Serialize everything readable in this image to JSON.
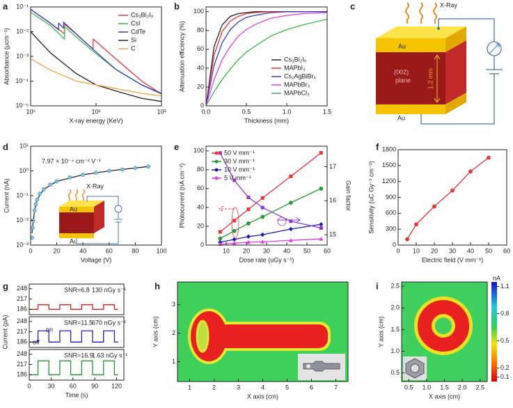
{
  "chart_data": [
    {
      "panel": "a",
      "type": "line",
      "xlabel": "X-ray energy (KeV)",
      "ylabel": "Absorbance (μcm⁻¹)",
      "xscale": "log",
      "yscale": "log",
      "xlim": [
        10,
        1000
      ],
      "ylim": [
        1e-05,
        0.1
      ],
      "xticks": [
        {
          "value": 10,
          "label": "10¹"
        },
        {
          "value": 100,
          "label": "10²"
        },
        {
          "value": 1000,
          "label": "10³"
        }
      ],
      "yticks": [
        {
          "value": 1e-05,
          "label": "10⁻⁵"
        },
        {
          "value": 0.0001,
          "label": "10⁻⁴"
        },
        {
          "value": 0.001,
          "label": "10⁻³"
        },
        {
          "value": 0.01,
          "label": "10⁻²"
        },
        {
          "value": 0.1,
          "label": "10⁻¹"
        }
      ],
      "legend": "upper right",
      "series": [
        {
          "name": "Cs₃Bi₂I₉",
          "color": "#e8333a",
          "x": [
            10,
            20,
            30,
            33,
            33.2,
            40,
            50,
            70,
            90,
            90.6,
            100,
            200,
            500,
            1000
          ],
          "values": [
            0.08,
            0.022,
            0.01,
            0.008,
            0.02,
            0.013,
            0.008,
            0.0035,
            0.002,
            0.005,
            0.004,
            0.0008,
            0.0001,
            3e-05
          ]
        },
        {
          "name": "CsI",
          "color": "#3bb54a",
          "x": [
            10,
            20,
            33,
            33.2,
            50,
            100,
            200,
            500,
            1000
          ],
          "values": [
            0.06,
            0.018,
            0.005,
            0.016,
            0.006,
            0.0013,
            0.0003,
            7e-05,
            3e-05
          ]
        },
        {
          "name": "CdTe",
          "color": "#3a3ab8",
          "x": [
            10,
            20,
            26.7,
            26.8,
            31.8,
            31.9,
            50,
            100,
            200,
            500,
            1000
          ],
          "values": [
            0.08,
            0.022,
            0.012,
            0.022,
            0.014,
            0.024,
            0.008,
            0.0015,
            0.0003,
            7e-05,
            3.2e-05
          ]
        },
        {
          "name": "Si",
          "color": "#222222",
          "x": [
            10,
            20,
            50,
            100,
            200,
            500,
            1000
          ],
          "values": [
            0.01,
            0.0014,
            0.0002,
            7e-05,
            4e-05,
            2e-05,
            1.5e-05
          ]
        },
        {
          "name": "C",
          "color": "#f0a34a",
          "x": [
            10,
            20,
            50,
            100,
            200,
            500,
            1000
          ],
          "values": [
            0.0008,
            0.00028,
            0.0001,
            7e-05,
            5e-05,
            3.2e-05,
            2.5e-05
          ]
        }
      ]
    },
    {
      "panel": "b",
      "type": "line",
      "xlabel": "Thickness (mm)",
      "ylabel": "Attenuation efficiency (%)",
      "xlim": [
        0,
        1.5
      ],
      "ylim": [
        0,
        105
      ],
      "xticks": [
        {
          "value": 0,
          "label": "0.0"
        },
        {
          "value": 0.5,
          "label": "0.5"
        },
        {
          "value": 1,
          "label": "1.0"
        },
        {
          "value": 1.5,
          "label": "1.5"
        }
      ],
      "yticks": [
        0,
        20,
        40,
        60,
        80,
        100
      ],
      "legend": "lower right",
      "x": [
        0,
        0.1,
        0.2,
        0.3,
        0.4,
        0.5,
        0.6,
        0.8,
        1.0,
        1.2,
        1.5
      ],
      "series": [
        {
          "name": "Cs₃Bi₂I₉",
          "color": "#222222",
          "values": [
            0,
            63,
            86,
            95,
            98,
            99,
            100,
            100,
            100,
            100,
            100
          ]
        },
        {
          "name": "MAPbI₃",
          "color": "#e8333a",
          "values": [
            0,
            54,
            79,
            90,
            95,
            98,
            99,
            100,
            100,
            100,
            100
          ]
        },
        {
          "name": "Cs₂AgBiBr₆",
          "color": "#3a3ab8",
          "values": [
            0,
            43,
            67,
            81,
            89,
            94,
            96,
            99,
            100,
            100,
            100
          ]
        },
        {
          "name": "MAPbBr₃",
          "color": "#e040e0",
          "values": [
            0,
            28,
            49,
            63,
            74,
            81,
            86,
            93,
            96,
            98,
            99
          ]
        },
        {
          "name": "MAPbCl₃",
          "color": "#3bb54a",
          "values": [
            0,
            15,
            28,
            39,
            49,
            57,
            63,
            74,
            81,
            86,
            92
          ]
        }
      ]
    },
    {
      "panel": "d",
      "type": "line",
      "xlabel": "Voltage (V)",
      "ylabel": "Current (nA)",
      "yscale": "log",
      "xlim": [
        0,
        100
      ],
      "ylim": [
        0.001,
        10
      ],
      "xticks": [
        0,
        20,
        40,
        60,
        80,
        100
      ],
      "yticks": [
        {
          "value": 0.001,
          "label": "10⁻³"
        },
        {
          "value": 0.01,
          "label": "10⁻²"
        },
        {
          "value": 0.1,
          "label": "10⁻¹"
        },
        {
          "value": 1,
          "label": "10⁰"
        },
        {
          "value": 10,
          "label": "10¹"
        }
      ],
      "annotations": [
        "7.97 × 10⁻⁴ cm⁻² V⁻¹"
      ],
      "series": [
        {
          "color": "#7cc0dc",
          "marker": "circle",
          "linestyle": "none",
          "x": [
            1,
            1.5,
            2,
            3,
            4,
            5,
            7,
            10,
            15,
            20,
            30,
            40,
            50,
            60,
            70,
            80,
            90
          ],
          "values": [
            0.002,
            0.005,
            0.01,
            0.025,
            0.045,
            0.07,
            0.12,
            0.18,
            0.28,
            0.38,
            0.55,
            0.7,
            0.85,
            1.0,
            1.15,
            1.3,
            1.5
          ]
        },
        {
          "color": "#222222",
          "x": [
            1,
            3,
            5,
            10,
            20,
            40,
            60,
            90
          ],
          "values": [
            0.003,
            0.025,
            0.07,
            0.18,
            0.38,
            0.7,
            1.0,
            1.5
          ]
        }
      ]
    },
    {
      "panel": "e",
      "type": "line",
      "xlabel": "Dose rate (uGy s⁻¹)",
      "ylabel": "Photocurrent (nA cm⁻²)",
      "y2label": "Gain factor",
      "xlim": [
        0,
        60
      ],
      "ylim": [
        0,
        105
      ],
      "y2lim": [
        14.7,
        17.6
      ],
      "xticks": [
        10,
        20,
        30,
        40,
        50,
        60
      ],
      "yticks": [
        0,
        20,
        40,
        60,
        80,
        100
      ],
      "y2ticks": [
        15,
        16,
        17
      ],
      "legend": "upper left",
      "x": [
        7,
        14,
        21,
        28,
        42,
        57
      ],
      "series": [
        {
          "name": "50 V mm⁻¹",
          "color": "#e8333a",
          "marker": "square",
          "values": [
            14,
            26,
            38,
            50,
            73,
            98
          ]
        },
        {
          "name": "30 V mm⁻¹",
          "color": "#2a9a3a",
          "marker": "circle",
          "values": [
            7,
            15,
            23,
            30,
            45,
            60
          ]
        },
        {
          "name": "10 V mm⁻¹",
          "color": "#2020b0",
          "marker": "diamond",
          "values": [
            3,
            6,
            9,
            11,
            17,
            22
          ]
        },
        {
          "name": "5 V mm⁻¹",
          "color": "#e040e0",
          "marker": "triangle",
          "values": [
            1,
            2,
            3,
            3.5,
            5,
            6.5
          ]
        },
        {
          "color": "#8a3ad0",
          "marker": "square",
          "axis": "y2",
          "values": [
            17.4,
            16.6,
            16.1,
            15.8,
            15.4,
            15.2
          ]
        }
      ]
    },
    {
      "panel": "f",
      "type": "line",
      "xlabel": "Electric field (V mm⁻¹)",
      "ylabel": "Sensitivity (uC Gy⁻¹ cm⁻²)",
      "xlim": [
        0,
        60
      ],
      "ylim": [
        0,
        1800
      ],
      "xticks": [
        0,
        10,
        20,
        30,
        40,
        50,
        60
      ],
      "yticks": [
        0,
        300,
        600,
        900,
        1200,
        1500,
        1800
      ],
      "series": [
        {
          "color": "#e8333a",
          "marker": "circle",
          "x": [
            5,
            10,
            20,
            30,
            40,
            50
          ],
          "values": [
            110,
            390,
            730,
            1030,
            1390,
            1650
          ]
        }
      ]
    },
    {
      "panel": "g",
      "type": "line",
      "xlim": [
        0,
        130
      ],
      "ylim": [
        170,
        262
      ],
      "yticks": [
        186,
        217,
        248
      ],
      "annotations": [
        "SNR=6.8",
        "130 nGy s⁻¹"
      ],
      "series": [
        {
          "color": "#e02020",
          "x": [
            0,
            12,
            12,
            27,
            27,
            42,
            42,
            57,
            57,
            72,
            72,
            87,
            87,
            102,
            102,
            117,
            117,
            122
          ],
          "values": [
            186,
            186,
            200,
            200,
            186,
            186,
            200,
            200,
            186,
            186,
            200,
            200,
            186,
            186,
            200,
            200,
            186,
            186
          ]
        }
      ]
    },
    {
      "type": "line",
      "ylabel": "Current (pA)",
      "xlim": [
        0,
        130
      ],
      "ylim": [
        170,
        262
      ],
      "yticks": [
        186,
        217,
        248
      ],
      "annotations": [
        "SNR=11.5",
        "670 nGy s⁻¹",
        "on",
        "off"
      ],
      "series": [
        {
          "color": "#2020c0",
          "x": [
            0,
            12,
            12,
            27,
            27,
            42,
            42,
            57,
            57,
            72,
            72,
            87,
            87,
            102,
            102,
            117,
            117,
            122
          ],
          "values": [
            186,
            186,
            220,
            220,
            186,
            186,
            220,
            220,
            186,
            186,
            220,
            220,
            186,
            186,
            220,
            220,
            186,
            186
          ]
        }
      ]
    },
    {
      "type": "line",
      "xlabel": "Time (s)",
      "xlim": [
        0,
        130
      ],
      "ylim": [
        170,
        262
      ],
      "xticks": [
        0,
        30,
        60,
        90,
        120
      ],
      "yticks": [
        186,
        217,
        248
      ],
      "annotations": [
        "SNR=16.9",
        "1.63 nGy s⁻¹"
      ],
      "series": [
        {
          "color": "#1f9a2f",
          "x": [
            0,
            12,
            12,
            27,
            27,
            42,
            42,
            57,
            57,
            72,
            72,
            87,
            87,
            102,
            102,
            117,
            117,
            122
          ],
          "values": [
            186,
            186,
            228,
            228,
            186,
            186,
            228,
            228,
            186,
            186,
            228,
            228,
            186,
            186,
            228,
            228,
            186,
            186
          ]
        }
      ]
    },
    {
      "panel": "h",
      "type": "heatmap",
      "xlabel": "X axis (cm)",
      "ylabel": "Y axis (cm)",
      "xlim": [
        0.5,
        7.5
      ],
      "ylim": [
        0.3,
        3.8
      ],
      "xticks": [
        1,
        2,
        3,
        4,
        5,
        6,
        7
      ],
      "yticks": [
        1,
        2,
        3
      ]
    },
    {
      "panel": "i",
      "type": "heatmap",
      "xlabel": "X axis (cm)",
      "ylabel": "Y axis (cm)",
      "xlim": [
        0.3,
        2.7
      ],
      "ylim": [
        0.3,
        2.6
      ],
      "xticks": [
        0.5,
        {
          "value": 1,
          "label": "1.0"
        },
        1.5,
        {
          "value": 2,
          "label": "2.0"
        },
        2.5
      ],
      "yticks": [
        0.5,
        {
          "value": 1,
          "label": "1.0"
        },
        1.5,
        {
          "value": 2,
          "label": "2.0"
        },
        2.5
      ],
      "colorbar": {
        "label": "nA",
        "lim": [
          0.05,
          1.15
        ],
        "ticks": [
          0.1,
          0.2,
          0.5,
          0.8,
          1.1
        ]
      }
    }
  ],
  "diagrams": {
    "c": {
      "panel": "c",
      "xray": "X-Ray",
      "top": "Au",
      "plane1": "(002)",
      "plane2": "plane",
      "thickness": "1.2 mm",
      "bottom": "Au"
    },
    "d_inset": {
      "xray": "X-Ray",
      "top": "Au",
      "bottom": "Au"
    }
  }
}
